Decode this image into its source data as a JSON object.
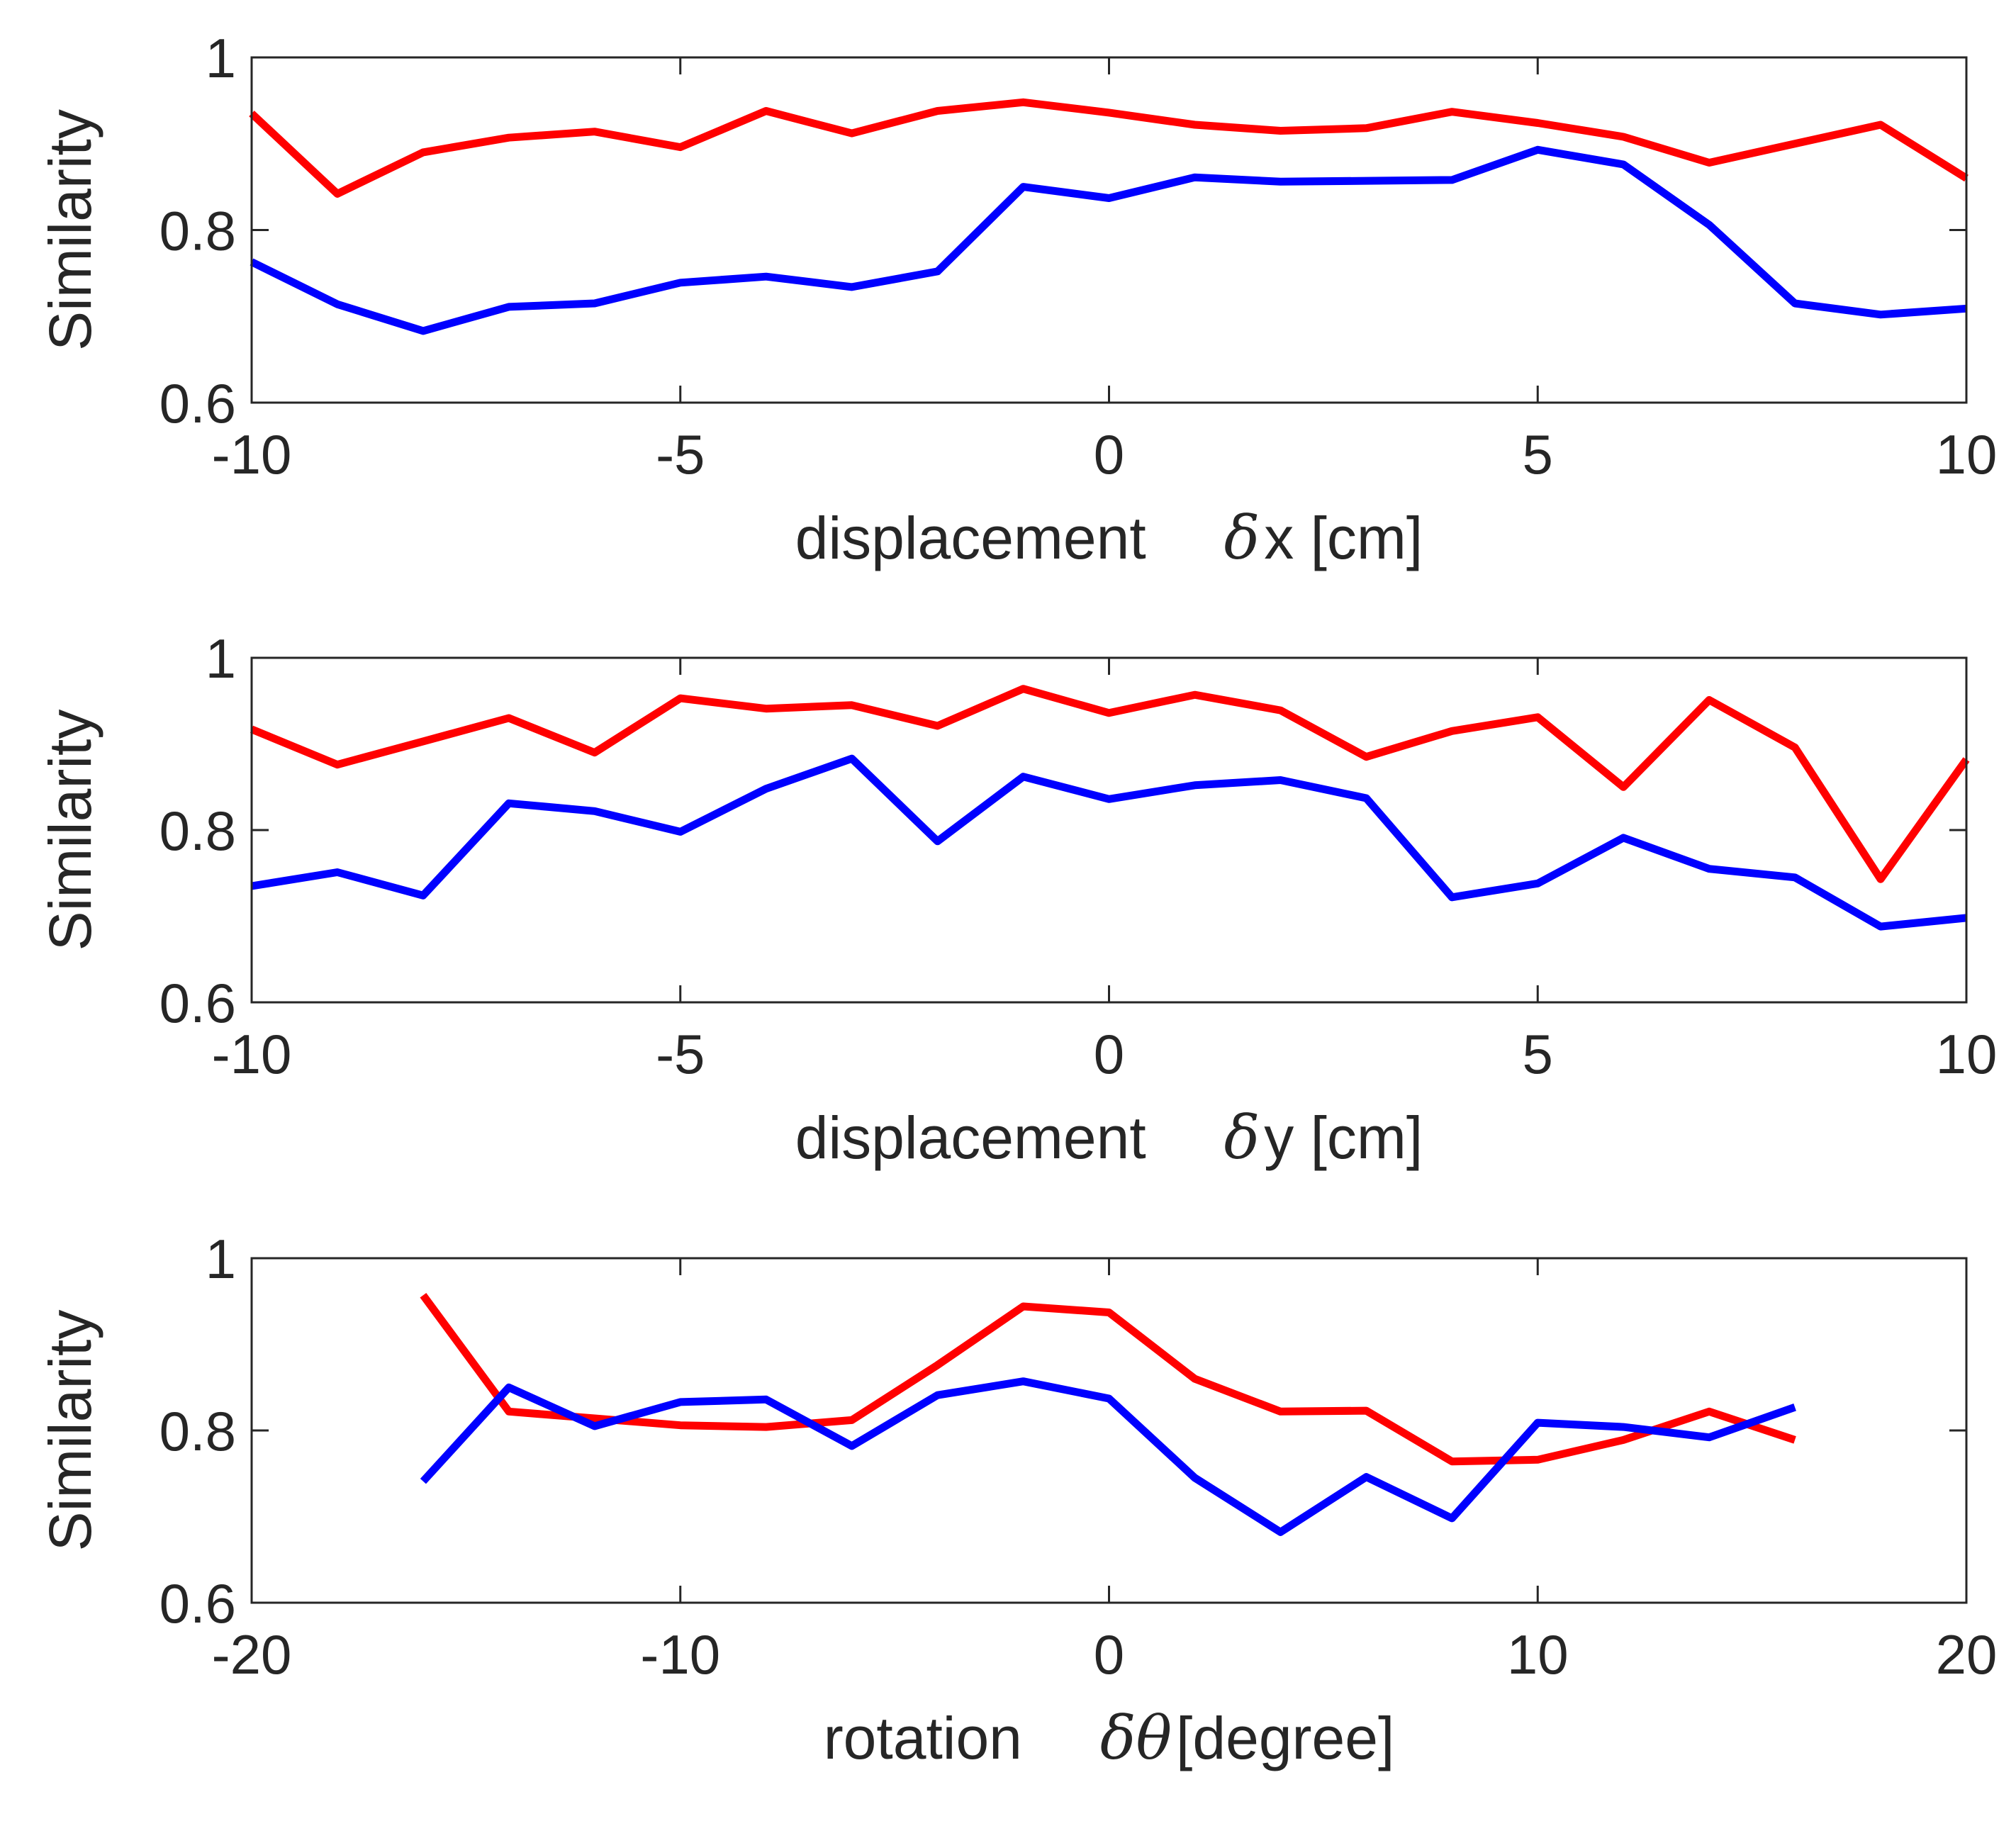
{
  "chart_data": [
    {
      "type": "line",
      "xlabel_text": "displacement",
      "xlabel_symbol": "δ",
      "xlabel_var": "x [cm]",
      "ylabel": "Similarity",
      "xlim": [
        -10,
        10
      ],
      "ylim": [
        0.6,
        1
      ],
      "xticks": [
        -10,
        -5,
        0,
        5,
        10
      ],
      "xtick_labels": [
        "-10",
        "-5",
        "0",
        "5",
        "10"
      ],
      "yticks": [
        0.6,
        0.8,
        1
      ],
      "ytick_labels": [
        "0.6",
        "0.8",
        "1"
      ],
      "x": [
        -10,
        -9,
        -8,
        -7,
        -6,
        -5,
        -4,
        -3,
        -2,
        -1,
        0,
        1,
        2,
        3,
        4,
        5,
        6,
        7,
        8,
        9,
        10
      ],
      "series": [
        {
          "name": "red",
          "color": "#ff0000",
          "values": [
            0.935,
            0.842,
            0.89,
            0.907,
            0.914,
            0.896,
            0.938,
            0.912,
            0.938,
            0.948,
            0.936,
            0.922,
            0.915,
            0.918,
            0.937,
            0.924,
            0.908,
            0.878,
            0.9,
            0.922,
            0.86
          ]
        },
        {
          "name": "blue",
          "color": "#0000ff",
          "values": [
            0.763,
            0.714,
            0.683,
            0.711,
            0.715,
            0.739,
            0.746,
            0.734,
            0.752,
            0.85,
            0.837,
            0.861,
            0.856,
            0.857,
            0.858,
            0.893,
            0.876,
            0.806,
            0.715,
            0.702,
            0.709
          ]
        }
      ]
    },
    {
      "type": "line",
      "xlabel_text": "displacement",
      "xlabel_symbol": "δ",
      "xlabel_var": "y [cm]",
      "ylabel": "Similarity",
      "xlim": [
        -10,
        10
      ],
      "ylim": [
        0.6,
        1
      ],
      "xticks": [
        -10,
        -5,
        0,
        5,
        10
      ],
      "xtick_labels": [
        "-10",
        "-5",
        "0",
        "5",
        "10"
      ],
      "yticks": [
        0.6,
        0.8,
        1
      ],
      "ytick_labels": [
        "0.6",
        "0.8",
        "1"
      ],
      "x": [
        -10,
        -9,
        -8,
        -7,
        -6,
        -5,
        -4,
        -3,
        -2,
        -1,
        0,
        1,
        2,
        3,
        4,
        5,
        6,
        7,
        8,
        9,
        10
      ],
      "series": [
        {
          "name": "red",
          "color": "#ff0000",
          "values": [
            0.917,
            0.876,
            0.903,
            0.93,
            0.89,
            0.953,
            0.941,
            0.945,
            0.921,
            0.964,
            0.936,
            0.957,
            0.939,
            0.885,
            0.915,
            0.931,
            0.85,
            0.951,
            0.896,
            0.743,
            0.882
          ]
        },
        {
          "name": "blue",
          "color": "#0000ff",
          "values": [
            0.735,
            0.751,
            0.724,
            0.831,
            0.822,
            0.798,
            0.848,
            0.883,
            0.787,
            0.862,
            0.836,
            0.852,
            0.858,
            0.837,
            0.722,
            0.738,
            0.791,
            0.755,
            0.745,
            0.688,
            0.698
          ]
        }
      ]
    },
    {
      "type": "line",
      "xlabel_text": "rotation",
      "xlabel_symbol": "δθ",
      "xlabel_var": "[degree]",
      "ylabel": "Similarity",
      "xlim": [
        -20,
        20
      ],
      "ylim": [
        0.6,
        1
      ],
      "xticks": [
        -20,
        -10,
        0,
        10,
        20
      ],
      "xtick_labels": [
        "-20",
        "-10",
        "0",
        "10",
        "20"
      ],
      "yticks": [
        0.6,
        0.8,
        1
      ],
      "ytick_labels": [
        "0.6",
        "0.8",
        "1"
      ],
      "x": [
        -16,
        -14,
        -12,
        -10,
        -8,
        -6,
        -4,
        -2,
        0,
        2,
        4,
        6,
        8,
        10,
        12,
        14,
        16
      ],
      "series": [
        {
          "name": "red",
          "color": "#ff0000",
          "values": [
            0.957,
            0.822,
            0.814,
            0.806,
            0.804,
            0.812,
            0.876,
            0.944,
            0.937,
            0.86,
            0.822,
            0.823,
            0.764,
            0.766,
            0.789,
            0.822,
            0.789
          ]
        },
        {
          "name": "blue",
          "color": "#0000ff",
          "values": [
            0.741,
            0.85,
            0.805,
            0.833,
            0.836,
            0.782,
            0.841,
            0.857,
            0.837,
            0.745,
            0.682,
            0.746,
            0.698,
            0.809,
            0.804,
            0.792,
            0.827
          ]
        }
      ]
    }
  ]
}
